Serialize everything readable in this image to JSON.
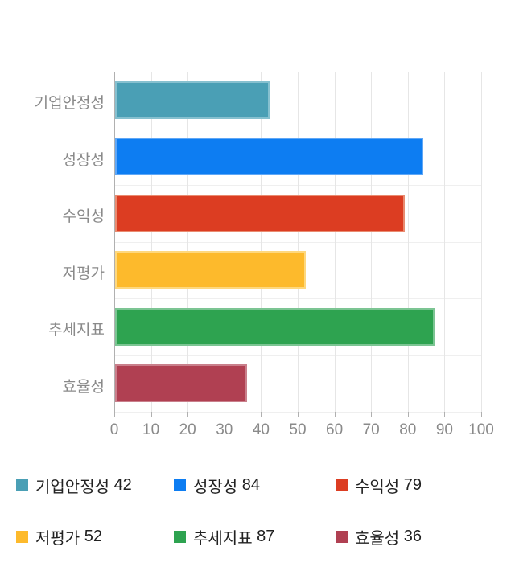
{
  "chart_data": {
    "type": "bar",
    "orientation": "horizontal",
    "title": "",
    "xlabel": "",
    "ylabel": "",
    "categories": [
      "기업안정성",
      "성장성",
      "수익성",
      "저평가",
      "추세지표",
      "효율성"
    ],
    "values": [
      42,
      84,
      79,
      52,
      87,
      36
    ],
    "bar_colors": [
      "#4A9FB5",
      "#0D7DF2",
      "#DC3D22",
      "#FDBA2C",
      "#2EA350",
      "#B04052"
    ],
    "bar_border_colors": [
      "#86C0CF",
      "#5FA7F6",
      "#E98B70",
      "#FED87E",
      "#7CC593",
      "#C97F8B"
    ],
    "xlim": [
      0,
      100
    ],
    "x_ticks": [
      0,
      10,
      20,
      30,
      40,
      50,
      60,
      70,
      80,
      90,
      100
    ],
    "grid": true,
    "legend_position": "bottom"
  },
  "legend": {
    "items": [
      {
        "label": "기업안정성",
        "value": "42",
        "color": "#4A9FB5"
      },
      {
        "label": "성장성",
        "value": "84",
        "color": "#0D7DF2"
      },
      {
        "label": "수익성",
        "value": "79",
        "color": "#DC3D22"
      },
      {
        "label": "저평가",
        "value": "52",
        "color": "#FDBA2C"
      },
      {
        "label": "추세지표",
        "value": "87",
        "color": "#2EA350"
      },
      {
        "label": "효율성",
        "value": "36",
        "color": "#B04052"
      }
    ]
  },
  "colors": {
    "background": "#ffffff",
    "gridline": "#e6e6e6",
    "axis_line": "#b0b0b0",
    "axis_text": "#8a8a8a",
    "legend_text": "#212121"
  }
}
